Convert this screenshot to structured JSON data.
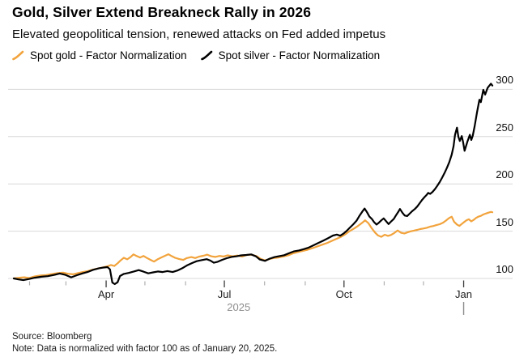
{
  "header": {
    "title": "Gold, Silver Extend Breakneck Rally in 2026",
    "subtitle": "Elevated geopolitical tension, renewed attacks on Fed added impetus"
  },
  "legend": [
    {
      "label": "Spot gold - Factor Normalization",
      "color": "#F2A33C"
    },
    {
      "label": "Spot silver - Factor Normalization",
      "color": "#000000"
    }
  ],
  "footer": {
    "source": "Source: Bloomberg",
    "note": "Note: Data is normalized with factor 100 as of January 20, 2025."
  },
  "chart_data": {
    "type": "line",
    "title": "Gold, Silver Extend Breakneck Rally in 2026",
    "subtitle": "Elevated geopolitical tension, renewed attacks on Fed added impetus",
    "x_unit": "fraction of period 2025-01-20 to 2026-01-23",
    "grid": "horizontal",
    "legend_position": "top-left",
    "colors": {
      "gold": "#F2A33C",
      "silver": "#000000",
      "gridline": "#d8d8d8",
      "minor_tick": "#b0b0b0",
      "major_tick": "#3c3c3c",
      "year_gray": "#8c8c8c"
    },
    "x_axis": {
      "major_ticks": [
        {
          "label": "Apr",
          "f": 0.193
        },
        {
          "label": "Jul",
          "f": 0.44
        },
        {
          "label": "Oct",
          "f": 0.69
        },
        {
          "label": "Jan",
          "f": 0.94
        }
      ],
      "minor_ticks_f": [
        0.033,
        0.109,
        0.274,
        0.359,
        0.524,
        0.609,
        0.774,
        0.856
      ],
      "year_label": "2025",
      "year_label_f": 0.47,
      "year_divider_f": 0.94
    },
    "y_axis": {
      "side": "right",
      "ticks": [
        100,
        150,
        200,
        250,
        300
      ],
      "range": [
        88,
        312
      ]
    },
    "series": [
      {
        "name": "Spot gold - Factor Normalization",
        "color": "#F2A33C",
        "points": [
          [
            0.0,
            100
          ],
          [
            0.012,
            100.8
          ],
          [
            0.022,
            101.2
          ],
          [
            0.032,
            100.4
          ],
          [
            0.044,
            102.2
          ],
          [
            0.056,
            103.2
          ],
          [
            0.068,
            103.6
          ],
          [
            0.08,
            104.6
          ],
          [
            0.091,
            105.6
          ],
          [
            0.103,
            106.2
          ],
          [
            0.113,
            105.0
          ],
          [
            0.124,
            104.4
          ],
          [
            0.134,
            105.6
          ],
          [
            0.144,
            106.8
          ],
          [
            0.154,
            107.6
          ],
          [
            0.164,
            109.2
          ],
          [
            0.174,
            110.4
          ],
          [
            0.184,
            111.4
          ],
          [
            0.196,
            112.8
          ],
          [
            0.203,
            114.2
          ],
          [
            0.21,
            113.2
          ],
          [
            0.217,
            116.0
          ],
          [
            0.223,
            119.0
          ],
          [
            0.23,
            121.8
          ],
          [
            0.237,
            120.2
          ],
          [
            0.244,
            122.6
          ],
          [
            0.25,
            125.4
          ],
          [
            0.257,
            123.6
          ],
          [
            0.264,
            122.2
          ],
          [
            0.271,
            123.8
          ],
          [
            0.277,
            122.0
          ],
          [
            0.286,
            119.6
          ],
          [
            0.293,
            117.8
          ],
          [
            0.301,
            120.4
          ],
          [
            0.31,
            122.6
          ],
          [
            0.316,
            124.0
          ],
          [
            0.323,
            125.6
          ],
          [
            0.33,
            123.6
          ],
          [
            0.337,
            121.8
          ],
          [
            0.345,
            120.6
          ],
          [
            0.354,
            119.6
          ],
          [
            0.362,
            121.6
          ],
          [
            0.371,
            122.6
          ],
          [
            0.379,
            121.6
          ],
          [
            0.387,
            123.0
          ],
          [
            0.396,
            124.0
          ],
          [
            0.404,
            125.2
          ],
          [
            0.413,
            123.4
          ],
          [
            0.421,
            122.8
          ],
          [
            0.43,
            123.8
          ],
          [
            0.438,
            123.2
          ],
          [
            0.447,
            124.4
          ],
          [
            0.457,
            123.4
          ],
          [
            0.467,
            124.2
          ],
          [
            0.477,
            123.2
          ],
          [
            0.487,
            124.8
          ],
          [
            0.497,
            125.2
          ],
          [
            0.508,
            123.4
          ],
          [
            0.516,
            120.6
          ],
          [
            0.525,
            119.0
          ],
          [
            0.533,
            120.4
          ],
          [
            0.543,
            121.6
          ],
          [
            0.553,
            122.2
          ],
          [
            0.563,
            123.2
          ],
          [
            0.574,
            124.6
          ],
          [
            0.584,
            126.6
          ],
          [
            0.594,
            128.0
          ],
          [
            0.604,
            129.2
          ],
          [
            0.614,
            130.4
          ],
          [
            0.624,
            132.0
          ],
          [
            0.634,
            133.8
          ],
          [
            0.645,
            135.8
          ],
          [
            0.655,
            137.6
          ],
          [
            0.665,
            139.8
          ],
          [
            0.675,
            142.0
          ],
          [
            0.684,
            144.0
          ],
          [
            0.694,
            147.2
          ],
          [
            0.702,
            150.2
          ],
          [
            0.711,
            152.8
          ],
          [
            0.719,
            155.4
          ],
          [
            0.728,
            158.8
          ],
          [
            0.734,
            161.5
          ],
          [
            0.741,
            158.5
          ],
          [
            0.748,
            153.0
          ],
          [
            0.755,
            148.5
          ],
          [
            0.761,
            145.5
          ],
          [
            0.768,
            144.0
          ],
          [
            0.775,
            146.2
          ],
          [
            0.782,
            145.0
          ],
          [
            0.788,
            146.0
          ],
          [
            0.795,
            148.0
          ],
          [
            0.802,
            150.8
          ],
          [
            0.809,
            148.4
          ],
          [
            0.816,
            147.6
          ],
          [
            0.822,
            148.6
          ],
          [
            0.829,
            149.8
          ],
          [
            0.836,
            150.6
          ],
          [
            0.843,
            151.4
          ],
          [
            0.849,
            152.2
          ],
          [
            0.856,
            152.8
          ],
          [
            0.863,
            153.6
          ],
          [
            0.87,
            154.8
          ],
          [
            0.876,
            155.4
          ],
          [
            0.883,
            156.4
          ],
          [
            0.89,
            157.4
          ],
          [
            0.897,
            159.0
          ],
          [
            0.903,
            161.2
          ],
          [
            0.91,
            164.0
          ],
          [
            0.915,
            165.2
          ],
          [
            0.92,
            160.0
          ],
          [
            0.926,
            157.0
          ],
          [
            0.931,
            155.6
          ],
          [
            0.936,
            157.6
          ],
          [
            0.941,
            159.6
          ],
          [
            0.946,
            161.6
          ],
          [
            0.951,
            162.6
          ],
          [
            0.956,
            160.4
          ],
          [
            0.961,
            162.0
          ],
          [
            0.966,
            164.0
          ],
          [
            0.971,
            165.4
          ],
          [
            0.976,
            166.2
          ],
          [
            0.981,
            167.6
          ],
          [
            0.986,
            168.6
          ],
          [
            0.992,
            169.6
          ],
          [
            0.997,
            170.4
          ],
          [
            1.0,
            170.0
          ]
        ]
      },
      {
        "name": "Spot silver - Factor Normalization",
        "color": "#000000",
        "points": [
          [
            0.0,
            100
          ],
          [
            0.01,
            99.0
          ],
          [
            0.02,
            98.2
          ],
          [
            0.032,
            99.4
          ],
          [
            0.044,
            100.8
          ],
          [
            0.058,
            101.8
          ],
          [
            0.071,
            102.4
          ],
          [
            0.085,
            103.8
          ],
          [
            0.096,
            105.2
          ],
          [
            0.108,
            103.8
          ],
          [
            0.12,
            101.2
          ],
          [
            0.132,
            103.4
          ],
          [
            0.144,
            105.4
          ],
          [
            0.154,
            106.8
          ],
          [
            0.166,
            109.2
          ],
          [
            0.178,
            110.8
          ],
          [
            0.188,
            111.6
          ],
          [
            0.196,
            112.0
          ],
          [
            0.201,
            109.6
          ],
          [
            0.206,
            95.6
          ],
          [
            0.211,
            94.0
          ],
          [
            0.217,
            96.0
          ],
          [
            0.222,
            102.6
          ],
          [
            0.23,
            104.8
          ],
          [
            0.24,
            105.8
          ],
          [
            0.25,
            107.2
          ],
          [
            0.261,
            108.8
          ],
          [
            0.271,
            107.2
          ],
          [
            0.281,
            105.4
          ],
          [
            0.291,
            106.4
          ],
          [
            0.301,
            107.4
          ],
          [
            0.311,
            106.8
          ],
          [
            0.321,
            107.8
          ],
          [
            0.332,
            106.8
          ],
          [
            0.342,
            108.4
          ],
          [
            0.352,
            110.8
          ],
          [
            0.362,
            113.8
          ],
          [
            0.372,
            116.2
          ],
          [
            0.382,
            118.2
          ],
          [
            0.393,
            119.4
          ],
          [
            0.403,
            120.4
          ],
          [
            0.411,
            118.8
          ],
          [
            0.418,
            116.6
          ],
          [
            0.426,
            117.6
          ],
          [
            0.435,
            119.6
          ],
          [
            0.445,
            121.4
          ],
          [
            0.455,
            122.8
          ],
          [
            0.465,
            123.4
          ],
          [
            0.475,
            124.4
          ],
          [
            0.486,
            124.8
          ],
          [
            0.496,
            125.4
          ],
          [
            0.506,
            123.4
          ],
          [
            0.514,
            120.0
          ],
          [
            0.525,
            118.6
          ],
          [
            0.535,
            121.0
          ],
          [
            0.545,
            122.6
          ],
          [
            0.555,
            123.6
          ],
          [
            0.565,
            124.6
          ],
          [
            0.575,
            126.6
          ],
          [
            0.585,
            128.6
          ],
          [
            0.596,
            129.6
          ],
          [
            0.606,
            131.0
          ],
          [
            0.616,
            132.6
          ],
          [
            0.626,
            135.0
          ],
          [
            0.636,
            137.4
          ],
          [
            0.646,
            139.8
          ],
          [
            0.656,
            142.4
          ],
          [
            0.667,
            145.4
          ],
          [
            0.675,
            146.4
          ],
          [
            0.682,
            145.2
          ],
          [
            0.689,
            147.4
          ],
          [
            0.695,
            150.0
          ],
          [
            0.702,
            153.6
          ],
          [
            0.709,
            157.0
          ],
          [
            0.716,
            161.0
          ],
          [
            0.722,
            166.0
          ],
          [
            0.728,
            170.5
          ],
          [
            0.733,
            174.0
          ],
          [
            0.738,
            170.0
          ],
          [
            0.743,
            165.5
          ],
          [
            0.748,
            163.0
          ],
          [
            0.753,
            159.5
          ],
          [
            0.758,
            157.0
          ],
          [
            0.763,
            159.0
          ],
          [
            0.768,
            161.5
          ],
          [
            0.773,
            163.5
          ],
          [
            0.778,
            160.5
          ],
          [
            0.783,
            157.5
          ],
          [
            0.788,
            160.0
          ],
          [
            0.794,
            163.0
          ],
          [
            0.799,
            167.0
          ],
          [
            0.804,
            171.0
          ],
          [
            0.807,
            173.5
          ],
          [
            0.812,
            169.5
          ],
          [
            0.817,
            166.5
          ],
          [
            0.822,
            166.0
          ],
          [
            0.827,
            168.5
          ],
          [
            0.832,
            171.0
          ],
          [
            0.838,
            173.5
          ],
          [
            0.843,
            176.0
          ],
          [
            0.848,
            179.5
          ],
          [
            0.853,
            183.0
          ],
          [
            0.858,
            186.0
          ],
          [
            0.863,
            188.5
          ],
          [
            0.866,
            190.5
          ],
          [
            0.87,
            189.5
          ],
          [
            0.875,
            191.5
          ],
          [
            0.88,
            194.5
          ],
          [
            0.885,
            198.0
          ],
          [
            0.89,
            202.0
          ],
          [
            0.895,
            206.5
          ],
          [
            0.9,
            211.5
          ],
          [
            0.905,
            217.0
          ],
          [
            0.91,
            223.0
          ],
          [
            0.915,
            231.0
          ],
          [
            0.919,
            240.0
          ],
          [
            0.922,
            252.0
          ],
          [
            0.926,
            259.5
          ],
          [
            0.929,
            250.0
          ],
          [
            0.932,
            245.5
          ],
          [
            0.936,
            250.5
          ],
          [
            0.939,
            244.0
          ],
          [
            0.942,
            235.0
          ],
          [
            0.948,
            245.0
          ],
          [
            0.953,
            252.0
          ],
          [
            0.956,
            246.5
          ],
          [
            0.959,
            251.0
          ],
          [
            0.963,
            261.0
          ],
          [
            0.968,
            276.0
          ],
          [
            0.973,
            289.0
          ],
          [
            0.976,
            286.5
          ],
          [
            0.981,
            299.5
          ],
          [
            0.985,
            294.5
          ],
          [
            0.99,
            301.5
          ],
          [
            0.997,
            306.0
          ],
          [
            1.0,
            304.0
          ]
        ]
      }
    ]
  }
}
